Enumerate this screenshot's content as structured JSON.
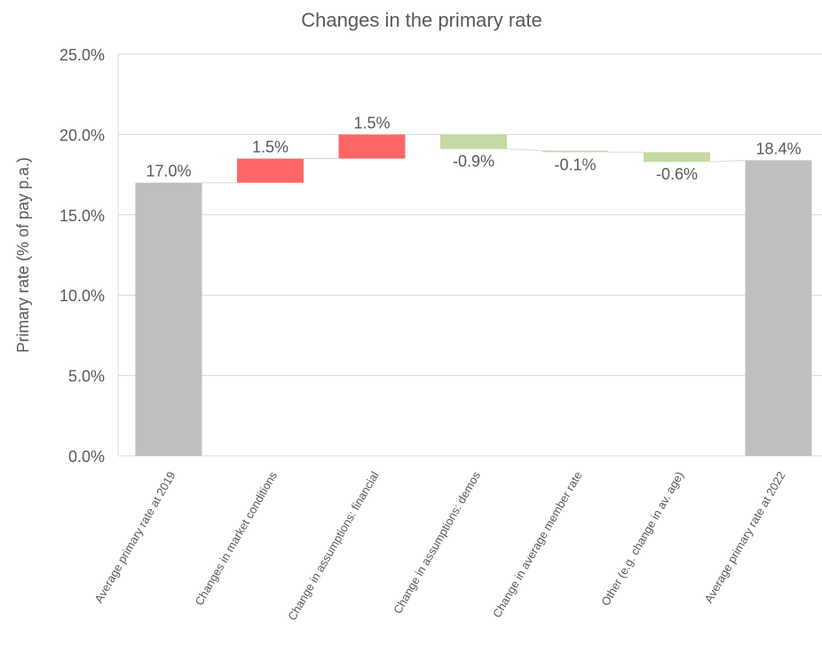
{
  "chart_data": {
    "type": "bar",
    "subtype": "waterfall",
    "title": "Changes in the primary rate",
    "ylabel": "Primary rate (% of pay p.a.)",
    "xlabel": "",
    "ylim": [
      0,
      25
    ],
    "y_ticks": [
      0,
      5,
      10,
      15,
      20,
      25
    ],
    "y_tick_labels": [
      "0.0%",
      "5.0%",
      "10.0%",
      "15.0%",
      "20.0%",
      "25.0%"
    ],
    "grid": true,
    "legend": "none",
    "categories": [
      "Average primary rate at 2019",
      "Changes in market conditions",
      "Change in assumptions: financial",
      "Change in assumptions: demos",
      "Change in average member rate",
      "Other (e.g. change in av. age)",
      "Average primary rate at 2022"
    ],
    "bars": [
      {
        "kind": "total",
        "start": 0,
        "end": 17.0,
        "label": "17.0%"
      },
      {
        "kind": "increase",
        "start": 17.0,
        "end": 18.5,
        "label": "1.5%"
      },
      {
        "kind": "increase",
        "start": 18.5,
        "end": 20.0,
        "label": "1.5%"
      },
      {
        "kind": "decrease",
        "start": 20.0,
        "end": 19.1,
        "label": "-0.9%"
      },
      {
        "kind": "decrease",
        "start": 19.0,
        "end": 18.9,
        "label": "-0.1%"
      },
      {
        "kind": "decrease",
        "start": 18.9,
        "end": 18.3,
        "label": "-0.6%"
      },
      {
        "kind": "total",
        "start": 0,
        "end": 18.4,
        "label": "18.4%"
      }
    ],
    "colors": {
      "total": "#bfbfbf",
      "increase": "#ff6666",
      "decrease": "#c5d9a3",
      "grid": "#d9d9d9",
      "connector": "#d9d9d9",
      "text": "#595959"
    }
  }
}
